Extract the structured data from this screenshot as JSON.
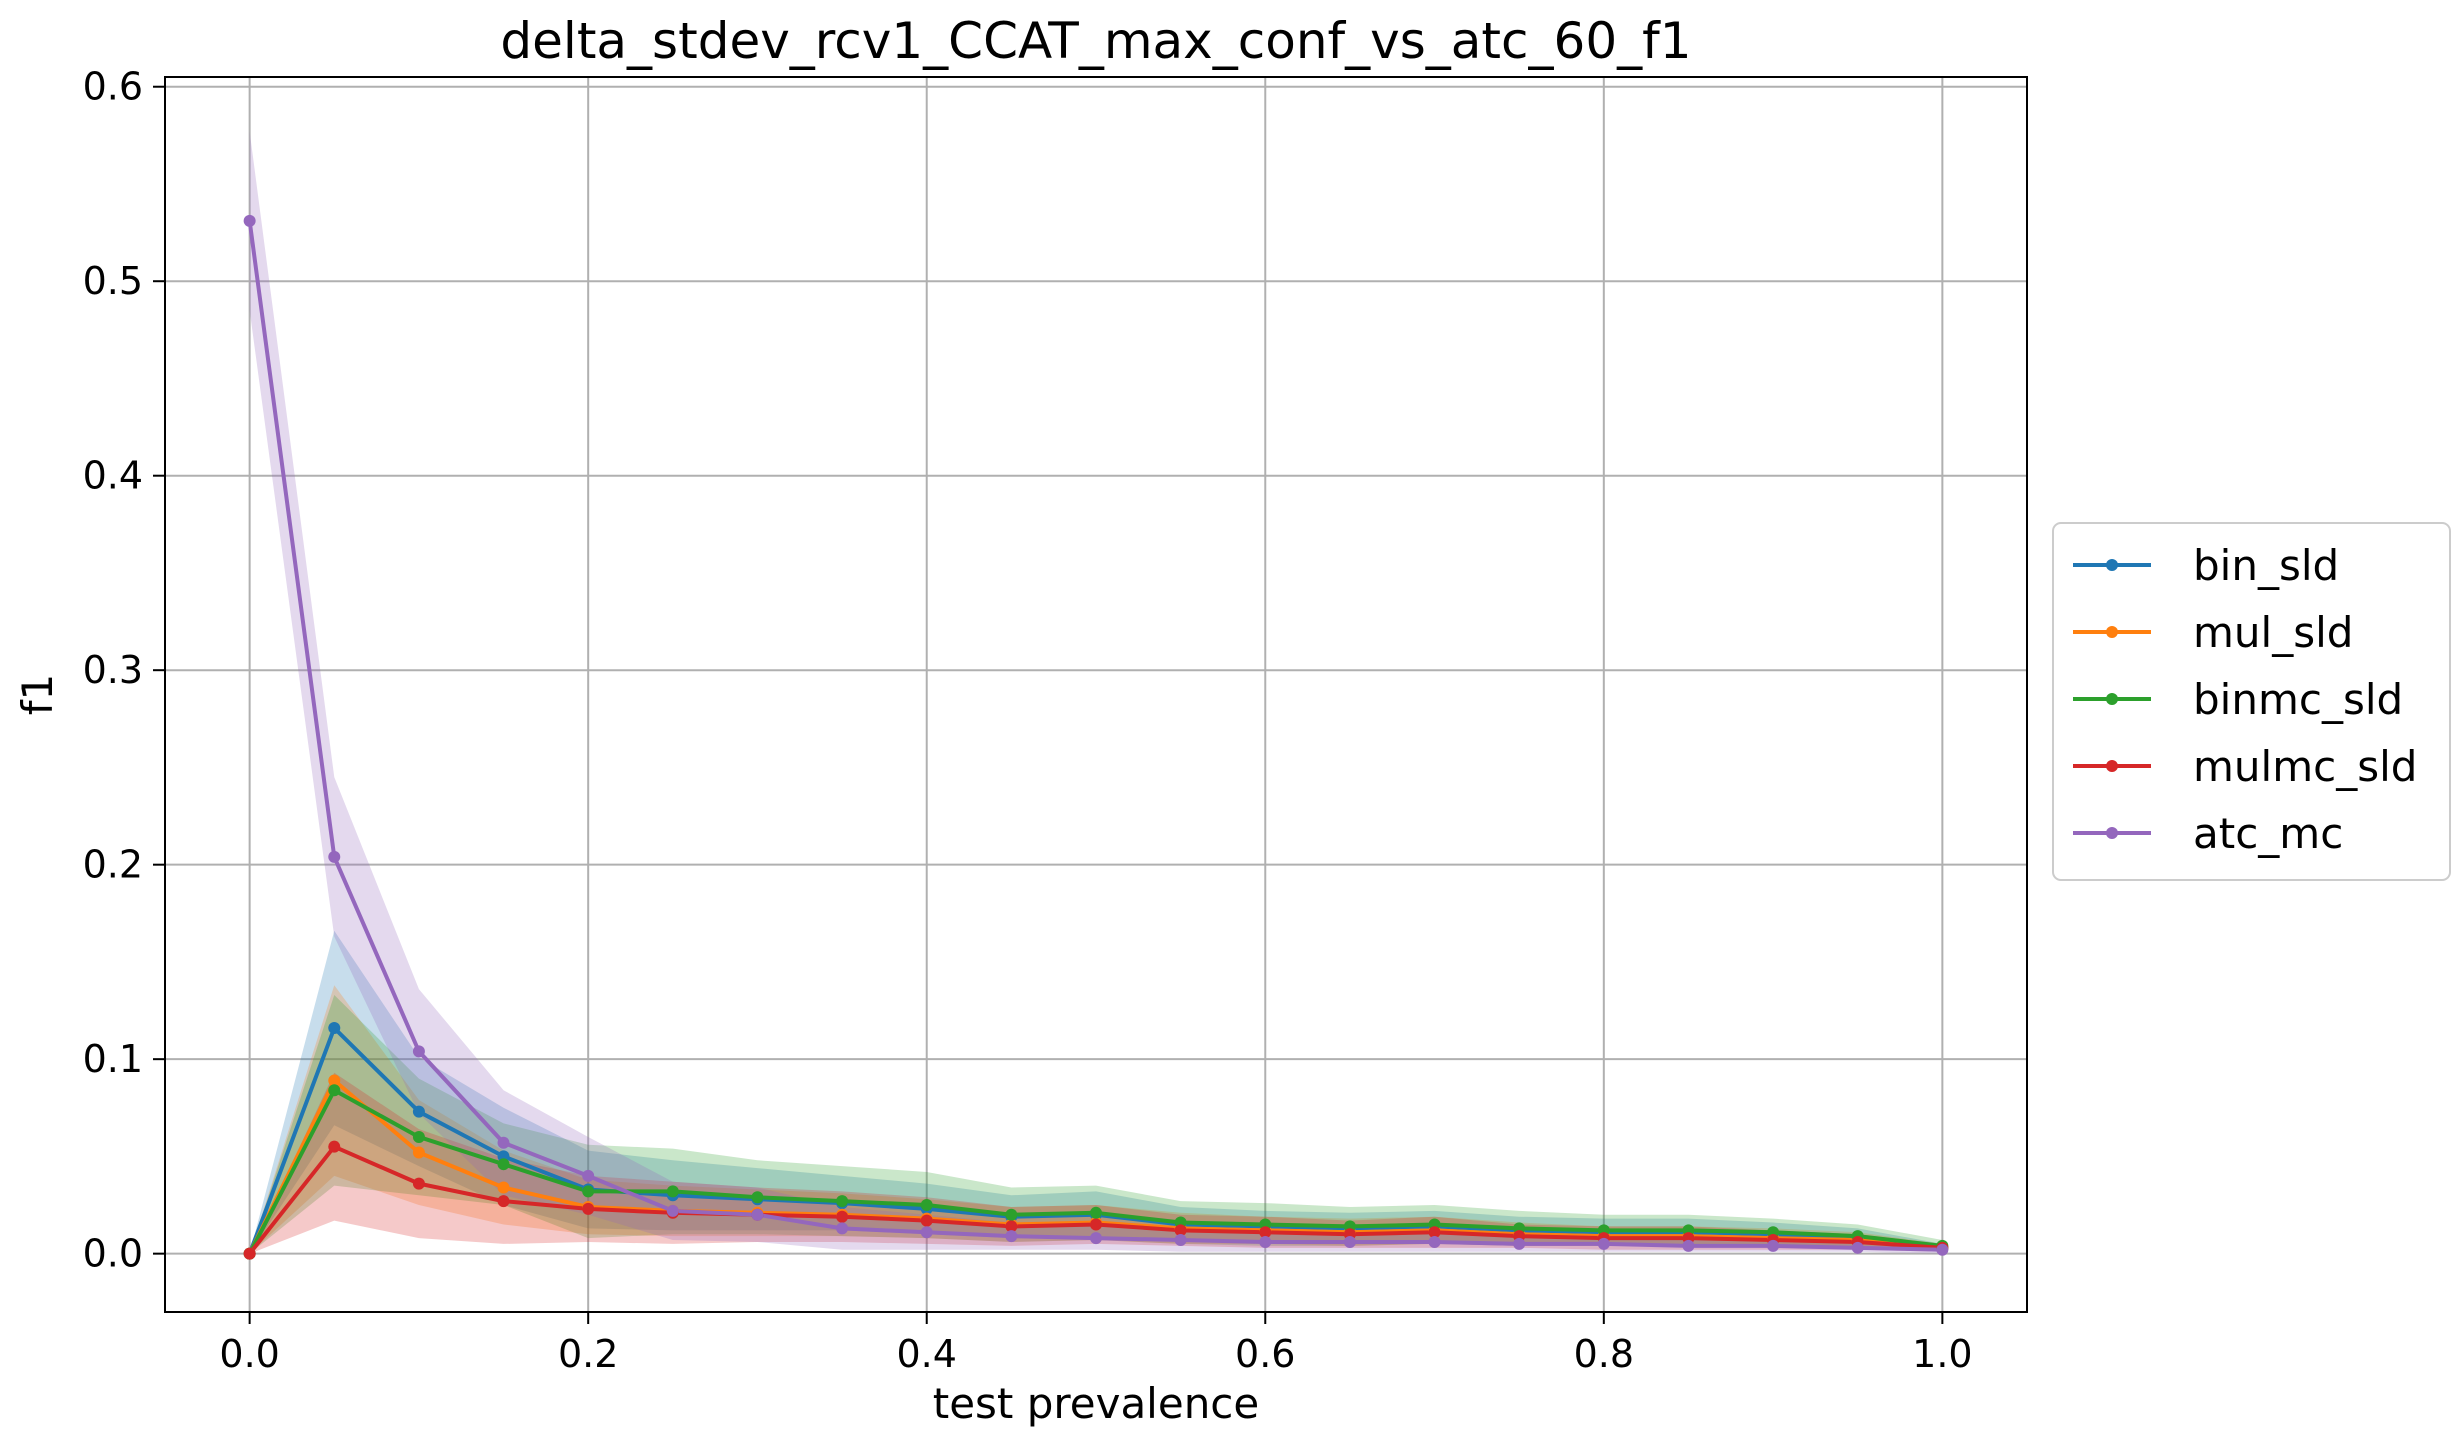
{
  "chart_data": {
    "type": "line",
    "title": "delta_stdev_rcv1_CCAT_max_conf_vs_atc_60_f1",
    "xlabel": "test prevalence",
    "ylabel": "f1",
    "xlim": [
      -0.05,
      1.05
    ],
    "ylim": [
      -0.03,
      0.605
    ],
    "xticks": [
      0.0,
      0.2,
      0.4,
      0.6,
      0.8,
      1.0
    ],
    "xtick_labels": [
      "0.0",
      "0.2",
      "0.4",
      "0.6",
      "0.8",
      "1.0"
    ],
    "yticks": [
      0.0,
      0.1,
      0.2,
      0.3,
      0.4,
      0.5,
      0.6
    ],
    "ytick_labels": [
      "0.0",
      "0.1",
      "0.2",
      "0.3",
      "0.4",
      "0.5",
      "0.6"
    ],
    "grid": true,
    "legend_position": "center-right-outside",
    "x": [
      0.0,
      0.05,
      0.1,
      0.15,
      0.2,
      0.25,
      0.3,
      0.35,
      0.4,
      0.45,
      0.5,
      0.55,
      0.6,
      0.65,
      0.7,
      0.75,
      0.8,
      0.85,
      0.9,
      0.95,
      1.0
    ],
    "series": [
      {
        "name": "bin_sld",
        "color": "#1f77b4",
        "values": [
          0.0,
          0.116,
          0.073,
          0.05,
          0.033,
          0.03,
          0.028,
          0.026,
          0.023,
          0.019,
          0.02,
          0.015,
          0.014,
          0.013,
          0.014,
          0.012,
          0.011,
          0.011,
          0.01,
          0.008,
          0.003
        ],
        "lower": [
          0.0,
          0.066,
          0.045,
          0.025,
          0.013,
          0.012,
          0.012,
          0.012,
          0.01,
          0.008,
          0.008,
          0.006,
          0.006,
          0.005,
          0.006,
          0.005,
          0.004,
          0.004,
          0.004,
          0.003,
          0.001
        ],
        "upper": [
          0.0,
          0.166,
          0.101,
          0.075,
          0.053,
          0.048,
          0.044,
          0.04,
          0.036,
          0.03,
          0.032,
          0.024,
          0.022,
          0.021,
          0.022,
          0.019,
          0.018,
          0.018,
          0.016,
          0.013,
          0.005
        ]
      },
      {
        "name": "mul_sld",
        "color": "#ff7f0e",
        "values": [
          0.0,
          0.089,
          0.052,
          0.034,
          0.024,
          0.022,
          0.021,
          0.02,
          0.018,
          0.015,
          0.016,
          0.013,
          0.012,
          0.011,
          0.012,
          0.01,
          0.009,
          0.009,
          0.008,
          0.007,
          0.003
        ],
        "lower": [
          0.0,
          0.04,
          0.025,
          0.015,
          0.01,
          0.009,
          0.009,
          0.009,
          0.008,
          0.006,
          0.007,
          0.005,
          0.005,
          0.004,
          0.005,
          0.004,
          0.004,
          0.004,
          0.003,
          0.003,
          0.001
        ],
        "upper": [
          0.0,
          0.138,
          0.079,
          0.053,
          0.038,
          0.035,
          0.033,
          0.031,
          0.028,
          0.024,
          0.025,
          0.021,
          0.019,
          0.018,
          0.019,
          0.016,
          0.014,
          0.014,
          0.013,
          0.011,
          0.005
        ]
      },
      {
        "name": "binmc_sld",
        "color": "#2ca02c",
        "values": [
          0.0,
          0.084,
          0.06,
          0.046,
          0.032,
          0.032,
          0.029,
          0.027,
          0.025,
          0.02,
          0.021,
          0.016,
          0.015,
          0.014,
          0.015,
          0.013,
          0.012,
          0.012,
          0.011,
          0.009,
          0.004
        ],
        "lower": [
          0.0,
          0.035,
          0.03,
          0.025,
          0.008,
          0.01,
          0.01,
          0.009,
          0.008,
          0.006,
          0.007,
          0.005,
          0.004,
          0.004,
          0.005,
          0.004,
          0.004,
          0.004,
          0.004,
          0.003,
          0.001
        ],
        "upper": [
          0.0,
          0.133,
          0.09,
          0.067,
          0.056,
          0.054,
          0.048,
          0.045,
          0.042,
          0.034,
          0.035,
          0.027,
          0.026,
          0.024,
          0.025,
          0.022,
          0.02,
          0.02,
          0.018,
          0.015,
          0.007
        ]
      },
      {
        "name": "mulmc_sld",
        "color": "#d62728",
        "values": [
          0.0,
          0.055,
          0.036,
          0.027,
          0.023,
          0.021,
          0.02,
          0.019,
          0.017,
          0.014,
          0.015,
          0.012,
          0.011,
          0.01,
          0.011,
          0.009,
          0.008,
          0.008,
          0.007,
          0.006,
          0.003
        ],
        "lower": [
          0.0,
          0.017,
          0.008,
          0.005,
          0.006,
          0.005,
          0.006,
          0.006,
          0.005,
          0.004,
          0.005,
          0.004,
          0.003,
          0.003,
          0.003,
          0.003,
          0.002,
          0.002,
          0.002,
          0.002,
          0.001
        ],
        "upper": [
          0.0,
          0.093,
          0.064,
          0.049,
          0.04,
          0.037,
          0.034,
          0.032,
          0.029,
          0.024,
          0.025,
          0.02,
          0.019,
          0.017,
          0.019,
          0.015,
          0.014,
          0.014,
          0.012,
          0.01,
          0.005
        ]
      },
      {
        "name": "atc_mc",
        "color": "#9467bd",
        "values": [
          0.531,
          0.204,
          0.104,
          0.057,
          0.04,
          0.022,
          0.02,
          0.013,
          0.011,
          0.009,
          0.008,
          0.007,
          0.006,
          0.006,
          0.006,
          0.005,
          0.005,
          0.004,
          0.004,
          0.003,
          0.002
        ],
        "lower": [
          0.485,
          0.163,
          0.072,
          0.03,
          0.02,
          0.007,
          0.006,
          0.002,
          0.002,
          0.002,
          0.002,
          0.001,
          0.001,
          0.001,
          0.001,
          0.001,
          0.001,
          0.001,
          0.001,
          0.001,
          0.0
        ],
        "upper": [
          0.577,
          0.245,
          0.136,
          0.084,
          0.06,
          0.037,
          0.034,
          0.024,
          0.02,
          0.016,
          0.014,
          0.013,
          0.011,
          0.011,
          0.011,
          0.009,
          0.009,
          0.008,
          0.007,
          0.005,
          0.004
        ]
      }
    ]
  }
}
